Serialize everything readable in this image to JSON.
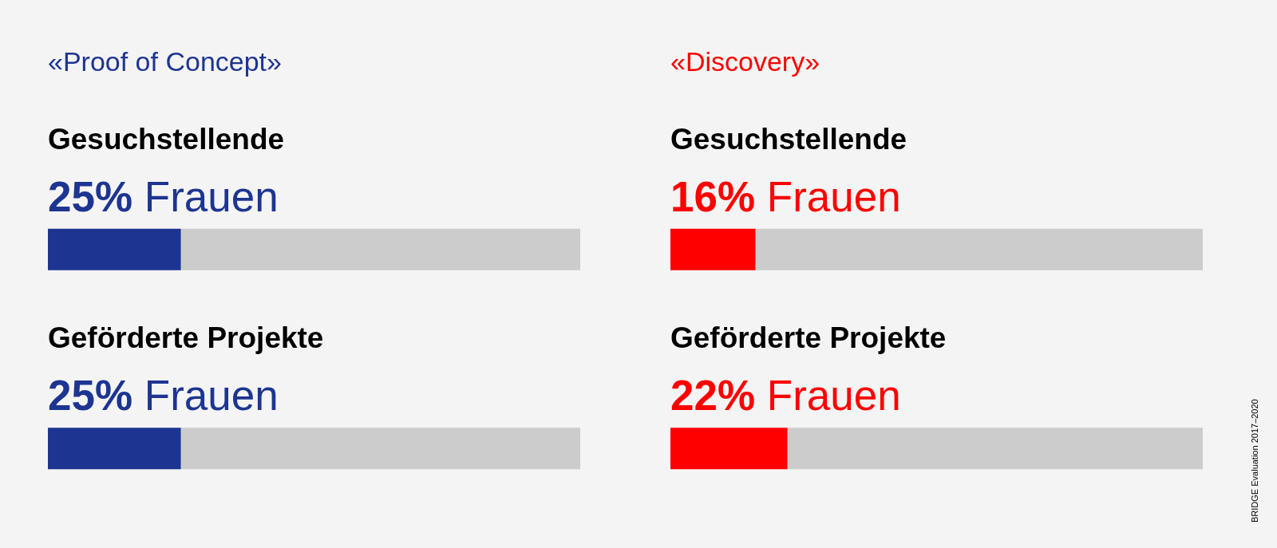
{
  "chart_data": [
    {
      "type": "bar",
      "orientation": "horizontal",
      "stacked": true,
      "title": "«Proof of Concept»",
      "categories": [
        "Gesuchstellende",
        "Geförderte Projekte"
      ],
      "xlim": [
        0,
        100
      ],
      "tick_labels": "y",
      "series": [
        {
          "color": "#1d3591",
          "values": [
            25,
            25
          ],
          "value_labels": [
            "25% Frauen",
            "25% Frauen"
          ]
        },
        {
          "color": "#cccccc",
          "values": [
            75,
            75
          ]
        }
      ]
    },
    {
      "type": "bar",
      "orientation": "horizontal",
      "stacked": true,
      "title": "«Discovery»",
      "categories": [
        "Gesuchstellende",
        "Geförderte Projekte"
      ],
      "xlim": [
        0,
        100
      ],
      "tick_labels": "y",
      "annotations": [
        "BRIDGE Evaluation 2017–2020"
      ],
      "series": [
        {
          "color": "#ff0000",
          "values": [
            16,
            22
          ],
          "value_labels": [
            "16% Frauen",
            "22% Frauen"
          ]
        },
        {
          "color": "#cccccc",
          "values": [
            84,
            78
          ]
        }
      ]
    }
  ]
}
